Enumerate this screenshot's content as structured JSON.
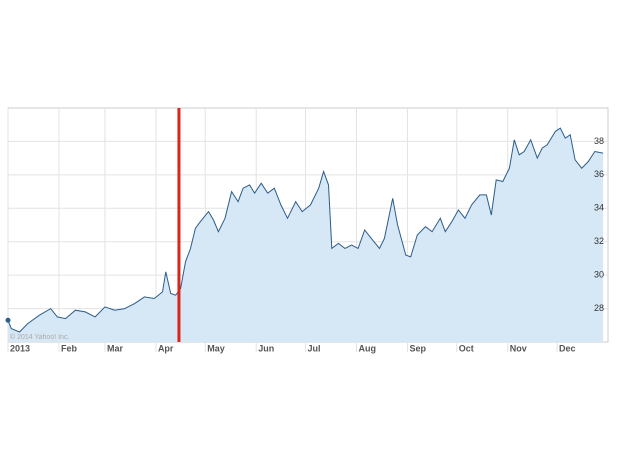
{
  "chart_data": {
    "type": "area",
    "watermark": "© 2014 Yahoo! Inc.",
    "x": [
      1,
      3,
      8,
      13,
      20,
      27,
      31,
      36,
      42,
      48,
      54,
      60,
      66,
      72,
      78,
      84,
      90,
      95,
      97,
      100,
      103,
      106,
      109,
      112,
      115,
      118,
      123,
      126,
      129,
      133,
      137,
      141,
      144,
      148,
      151,
      155,
      159,
      163,
      167,
      171,
      176,
      180,
      185,
      190,
      193,
      196,
      198,
      202,
      206,
      210,
      214,
      218,
      222,
      227,
      230,
      235,
      238,
      243,
      246,
      250,
      255,
      259,
      264,
      267,
      271,
      275,
      279,
      283,
      288,
      292,
      295,
      298,
      302,
      306,
      309,
      312,
      315,
      319,
      323,
      326,
      329,
      334,
      337,
      340,
      343,
      346,
      350,
      354,
      358,
      363
    ],
    "series": [
      {
        "color": "#2b5d8a",
        "fill": "#d6e7f5",
        "values": [
          27.3,
          26.8,
          26.6,
          27.1,
          27.6,
          28.0,
          27.5,
          27.4,
          27.9,
          27.8,
          27.5,
          28.1,
          27.9,
          28.0,
          28.3,
          28.7,
          28.6,
          29.0,
          30.2,
          28.9,
          28.8,
          29.2,
          30.8,
          31.6,
          32.8,
          33.2,
          33.8,
          33.3,
          32.6,
          33.4,
          35.0,
          34.4,
          35.2,
          35.4,
          34.9,
          35.5,
          34.9,
          35.2,
          34.2,
          33.4,
          34.4,
          33.8,
          34.2,
          35.2,
          36.2,
          35.4,
          31.6,
          31.9,
          31.6,
          31.8,
          31.6,
          32.7,
          32.2,
          31.6,
          32.2,
          34.6,
          33.0,
          31.2,
          31.1,
          32.4,
          32.9,
          32.6,
          33.4,
          32.6,
          33.2,
          33.9,
          33.4,
          34.2,
          34.8,
          34.8,
          33.6,
          35.7,
          35.6,
          36.4,
          38.1,
          37.2,
          37.4,
          38.1,
          37.0,
          37.6,
          37.8,
          38.6,
          38.8,
          38.2,
          38.4,
          36.9,
          36.4,
          36.8,
          37.4,
          37.3
        ]
      }
    ],
    "xlim": [
      1,
      366
    ],
    "xticks": [
      {
        "value": 1,
        "label": "2013"
      },
      {
        "value": 32,
        "label": "Feb"
      },
      {
        "value": 60,
        "label": "Mar"
      },
      {
        "value": 91,
        "label": "Apr"
      },
      {
        "value": 121,
        "label": "May"
      },
      {
        "value": 152,
        "label": "Jun"
      },
      {
        "value": 182,
        "label": "Jul"
      },
      {
        "value": 213,
        "label": "Aug"
      },
      {
        "value": 244,
        "label": "Sep"
      },
      {
        "value": 274,
        "label": "Oct"
      },
      {
        "value": 305,
        "label": "Nov"
      },
      {
        "value": 335,
        "label": "Dec"
      }
    ],
    "ylim": [
      26,
      40
    ],
    "yticks": [
      28,
      30,
      32,
      34,
      36,
      38
    ],
    "grid": true,
    "marker_line": {
      "x": 105,
      "color": "#d9261c"
    }
  }
}
